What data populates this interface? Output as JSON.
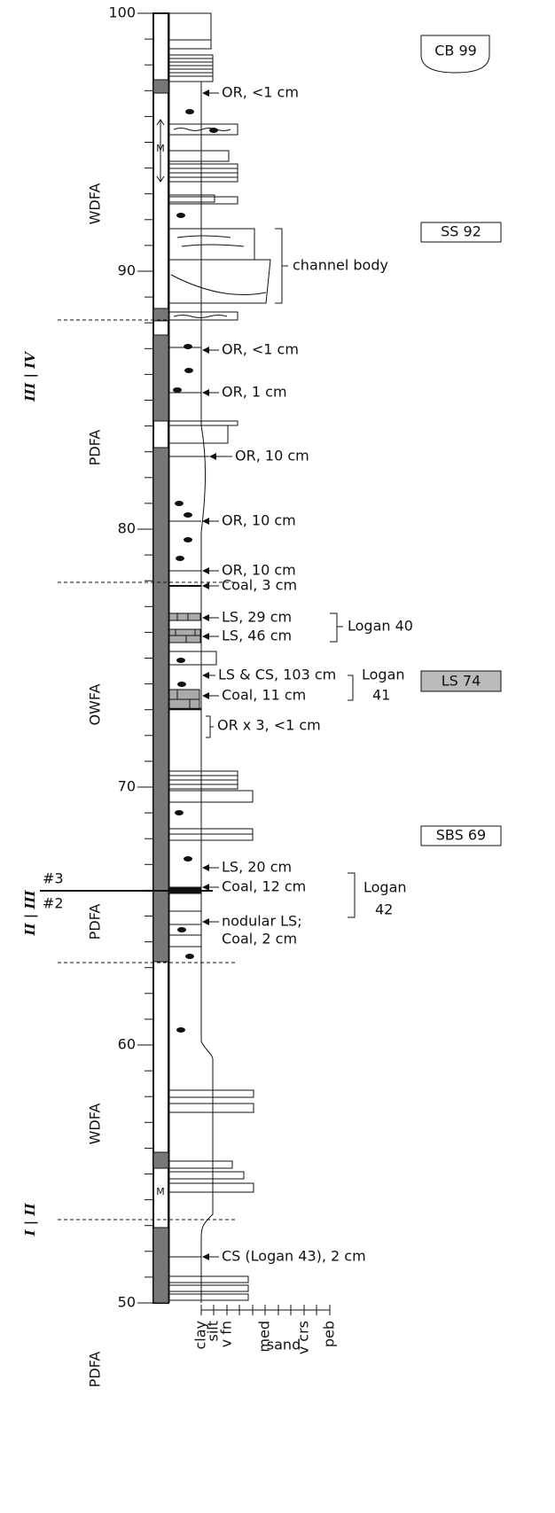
{
  "scale": {
    "ticks": [
      100,
      90,
      80,
      70,
      60,
      50
    ]
  },
  "facies": [
    "WDFA",
    "PDFA",
    "OWFA",
    "PDFA",
    "WDFA",
    "PDFA"
  ],
  "boundaries": [
    "III | IV",
    "II | III",
    "I | II"
  ],
  "surfaces": [
    "#3",
    "#2"
  ],
  "markers": [
    "M",
    "M"
  ],
  "annotations": [
    "OR, <1 cm",
    "channel body",
    "OR, <1 cm",
    "OR, 1 cm",
    "OR, 10 cm",
    "OR, 10 cm",
    "OR, 10 cm",
    "Coal, 3 cm",
    "LS, 29 cm",
    "LS, 46 cm",
    "LS & CS, 103 cm",
    "Coal, 11 cm",
    "OR x 3, <1 cm",
    "LS, 20 cm",
    "Coal, 12 cm",
    "nodular LS;",
    "Coal, 2 cm",
    "CS (Logan 43), 2 cm"
  ],
  "brackets": [
    [
      "Logan 40"
    ],
    [
      "Logan",
      "41"
    ],
    [
      "Logan",
      "42"
    ]
  ],
  "boxes": [
    "CB 99",
    "SS 92",
    "LS 74",
    "SBS 69"
  ],
  "grain_size": {
    "labels": [
      "clay",
      "silt",
      "v fn",
      "med",
      "v crs",
      "peb"
    ],
    "sand": "sand"
  }
}
